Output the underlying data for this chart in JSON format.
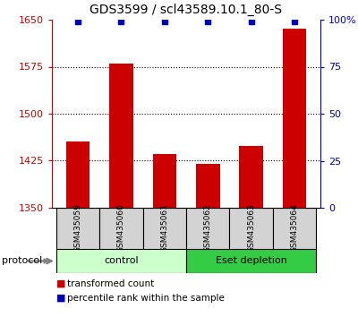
{
  "title": "GDS3599 / scl43589.10.1_80-S",
  "samples": [
    "GSM435059",
    "GSM435060",
    "GSM435061",
    "GSM435062",
    "GSM435063",
    "GSM435064"
  ],
  "bar_values": [
    1455,
    1580,
    1435,
    1420,
    1448,
    1635
  ],
  "baseline": 1350,
  "ylim_left": [
    1350,
    1650
  ],
  "ylim_right": [
    0,
    100
  ],
  "yticks_left": [
    1350,
    1425,
    1500,
    1575,
    1650
  ],
  "ytick_labels_left": [
    "1350",
    "1425",
    "1500",
    "1575",
    "1650"
  ],
  "yticks_right": [
    0,
    25,
    50,
    75,
    100
  ],
  "ytick_labels_right": [
    "0",
    "25",
    "50",
    "75",
    "100%"
  ],
  "hlines": [
    1425,
    1500,
    1575
  ],
  "bar_color": "#cc0000",
  "dot_color": "#0000bb",
  "protocol_groups": [
    {
      "label": "control",
      "indices": [
        0,
        1,
        2
      ],
      "color": "#ccffcc"
    },
    {
      "label": "Eset depletion",
      "indices": [
        3,
        4,
        5
      ],
      "color": "#33cc44"
    }
  ],
  "legend_items": [
    {
      "color": "#cc0000",
      "label": "transformed count"
    },
    {
      "color": "#0000bb",
      "label": "percentile rank within the sample"
    }
  ],
  "bar_width": 0.55,
  "sample_box_color": "#d3d3d3",
  "left_axis_color": "#cc0000",
  "right_axis_color": "#0000bb",
  "protocol_label": "protocol",
  "figsize": [
    4.0,
    3.54
  ],
  "dpi": 100
}
